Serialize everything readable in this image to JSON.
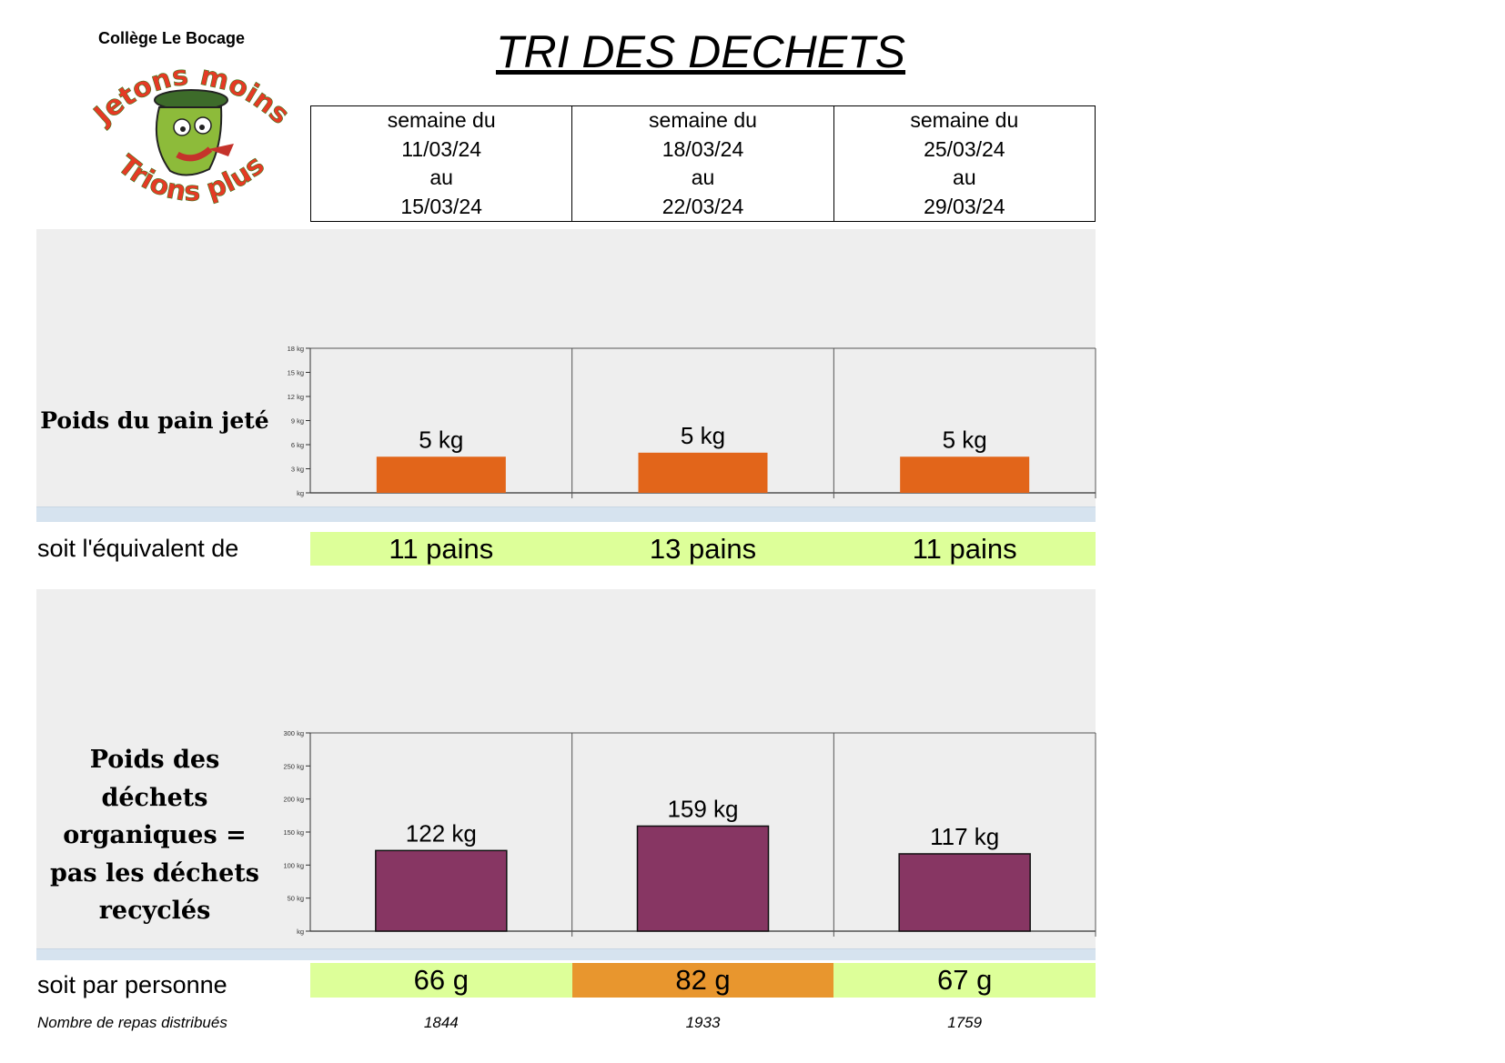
{
  "header": {
    "school": "Collège Le Bocage",
    "title": "TRI DES DECHETS",
    "logo": {
      "top_text": "Jetons moins",
      "bottom_text": "Trions plus",
      "icon": "trash-bin-mascot-icon"
    }
  },
  "weeks": [
    {
      "line1": "semaine du",
      "from": "11/03/24",
      "line3": "au",
      "to": "15/03/24"
    },
    {
      "line1": "semaine du",
      "from": "18/03/24",
      "line3": "au",
      "to": "22/03/24"
    },
    {
      "line1": "semaine du",
      "from": "25/03/24",
      "line3": "au",
      "to": "29/03/24"
    }
  ],
  "chart_data": [
    {
      "type": "bar",
      "title": "Poids du pain jeté",
      "categories": [
        "11/03/24 - 15/03/24",
        "18/03/24 - 22/03/24",
        "25/03/24 - 29/03/24"
      ],
      "values": [
        4.5,
        5,
        4.5
      ],
      "data_labels": [
        "5 kg",
        "5 kg",
        "5 kg"
      ],
      "ylim": [
        0,
        18
      ],
      "yticks": [
        0,
        3,
        6,
        9,
        12,
        15,
        18
      ],
      "ytick_labels": [
        "kg",
        "3 kg",
        "6 kg",
        "9 kg",
        "12 kg",
        "15 kg",
        "18 kg"
      ],
      "color": "#e2651a",
      "grid": "vertical separators"
    },
    {
      "type": "bar",
      "title": "Poids des déchets organiques = pas les déchets recyclés",
      "categories": [
        "11/03/24 - 15/03/24",
        "18/03/24 - 22/03/24",
        "25/03/24 - 29/03/24"
      ],
      "values": [
        122,
        159,
        117
      ],
      "data_labels": [
        "122 kg",
        "159 kg",
        "117 kg"
      ],
      "ylim": [
        0,
        300
      ],
      "yticks": [
        0,
        50,
        100,
        150,
        200,
        250,
        300
      ],
      "ytick_labels": [
        "kg",
        "50 kg",
        "100 kg",
        "150 kg",
        "200 kg",
        "250 kg",
        "300 kg"
      ],
      "color": "#873663",
      "grid": "vertical separators"
    }
  ],
  "labels": {
    "bread": "Poids du pain jeté",
    "organic": [
      "Poids des",
      "déchets",
      "organiques =",
      "pas les déchets",
      "recyclés"
    ],
    "equivalent": "soit l'équivalent de",
    "per_person": "soit par personne",
    "meals": "Nombre de repas distribués"
  },
  "equivalents": [
    "11 pains",
    "13 pains",
    "11 pains"
  ],
  "per_person": [
    {
      "value": "66 g",
      "color": "#ddff99"
    },
    {
      "value": "82 g",
      "color": "#e8962e"
    },
    {
      "value": "67 g",
      "color": "#ddff99"
    }
  ],
  "meals": [
    "1844",
    "1933",
    "1759"
  ]
}
